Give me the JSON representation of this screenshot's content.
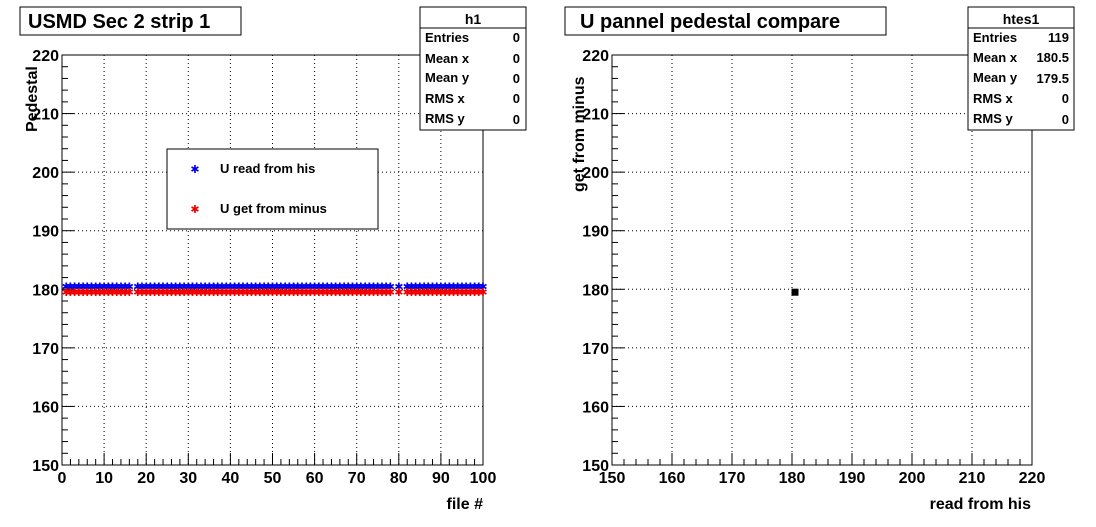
{
  "colors": {
    "blue": "#0000ee",
    "red": "#ee0000",
    "black": "#000000",
    "grid": "#000000"
  },
  "chart_data": [
    {
      "type": "scatter",
      "title": "USMD Sec 2 strip 1",
      "xlabel": "file #",
      "ylabel": "Pedestal",
      "xlim": [
        0,
        100
      ],
      "ylim": [
        150,
        220
      ],
      "xticks": [
        0,
        10,
        20,
        30,
        40,
        50,
        60,
        70,
        80,
        90,
        100
      ],
      "yticks": [
        150,
        160,
        170,
        180,
        190,
        200,
        210,
        220
      ],
      "grid": true,
      "legend": {
        "placement": "upper-left-center",
        "entries": [
          "U read from his",
          "U get from minus"
        ]
      },
      "stats": {
        "name": "h1",
        "rows": [
          {
            "label": "Entries",
            "value": "0"
          },
          {
            "label": "Mean x",
            "value": "0"
          },
          {
            "label": "Mean y",
            "value": "0"
          },
          {
            "label": "RMS x",
            "value": "0"
          },
          {
            "label": "RMS y",
            "value": "0"
          }
        ]
      },
      "series": [
        {
          "name": "U read from his",
          "color": "#0000ee",
          "y": 180.5,
          "x_runs": [
            [
              1,
              16
            ],
            [
              18,
              78
            ],
            [
              80,
              80
            ],
            [
              82,
              100
            ]
          ]
        },
        {
          "name": "U get from minus",
          "color": "#ee0000",
          "y": 179.5,
          "x_runs": [
            [
              1,
              16
            ],
            [
              18,
              78
            ],
            [
              80,
              80
            ],
            [
              82,
              100
            ]
          ]
        }
      ]
    },
    {
      "type": "scatter",
      "title": "U pannel pedestal compare",
      "xlabel": "read from his",
      "ylabel": "get from minus",
      "xlim": [
        150,
        220
      ],
      "ylim": [
        150,
        220
      ],
      "xticks": [
        150,
        160,
        170,
        180,
        190,
        200,
        210,
        220
      ],
      "yticks": [
        150,
        160,
        170,
        180,
        190,
        200,
        210,
        220
      ],
      "grid": true,
      "stats": {
        "name": "htes1",
        "rows": [
          {
            "label": "Entries",
            "value": "119"
          },
          {
            "label": "Mean x",
            "value": "180.5"
          },
          {
            "label": "Mean y",
            "value": "179.5"
          },
          {
            "label": "RMS x",
            "value": "0"
          },
          {
            "label": "RMS y",
            "value": "0"
          }
        ]
      },
      "series": [
        {
          "color": "#000000",
          "points": [
            [
              180.5,
              179.5
            ]
          ]
        }
      ]
    }
  ]
}
